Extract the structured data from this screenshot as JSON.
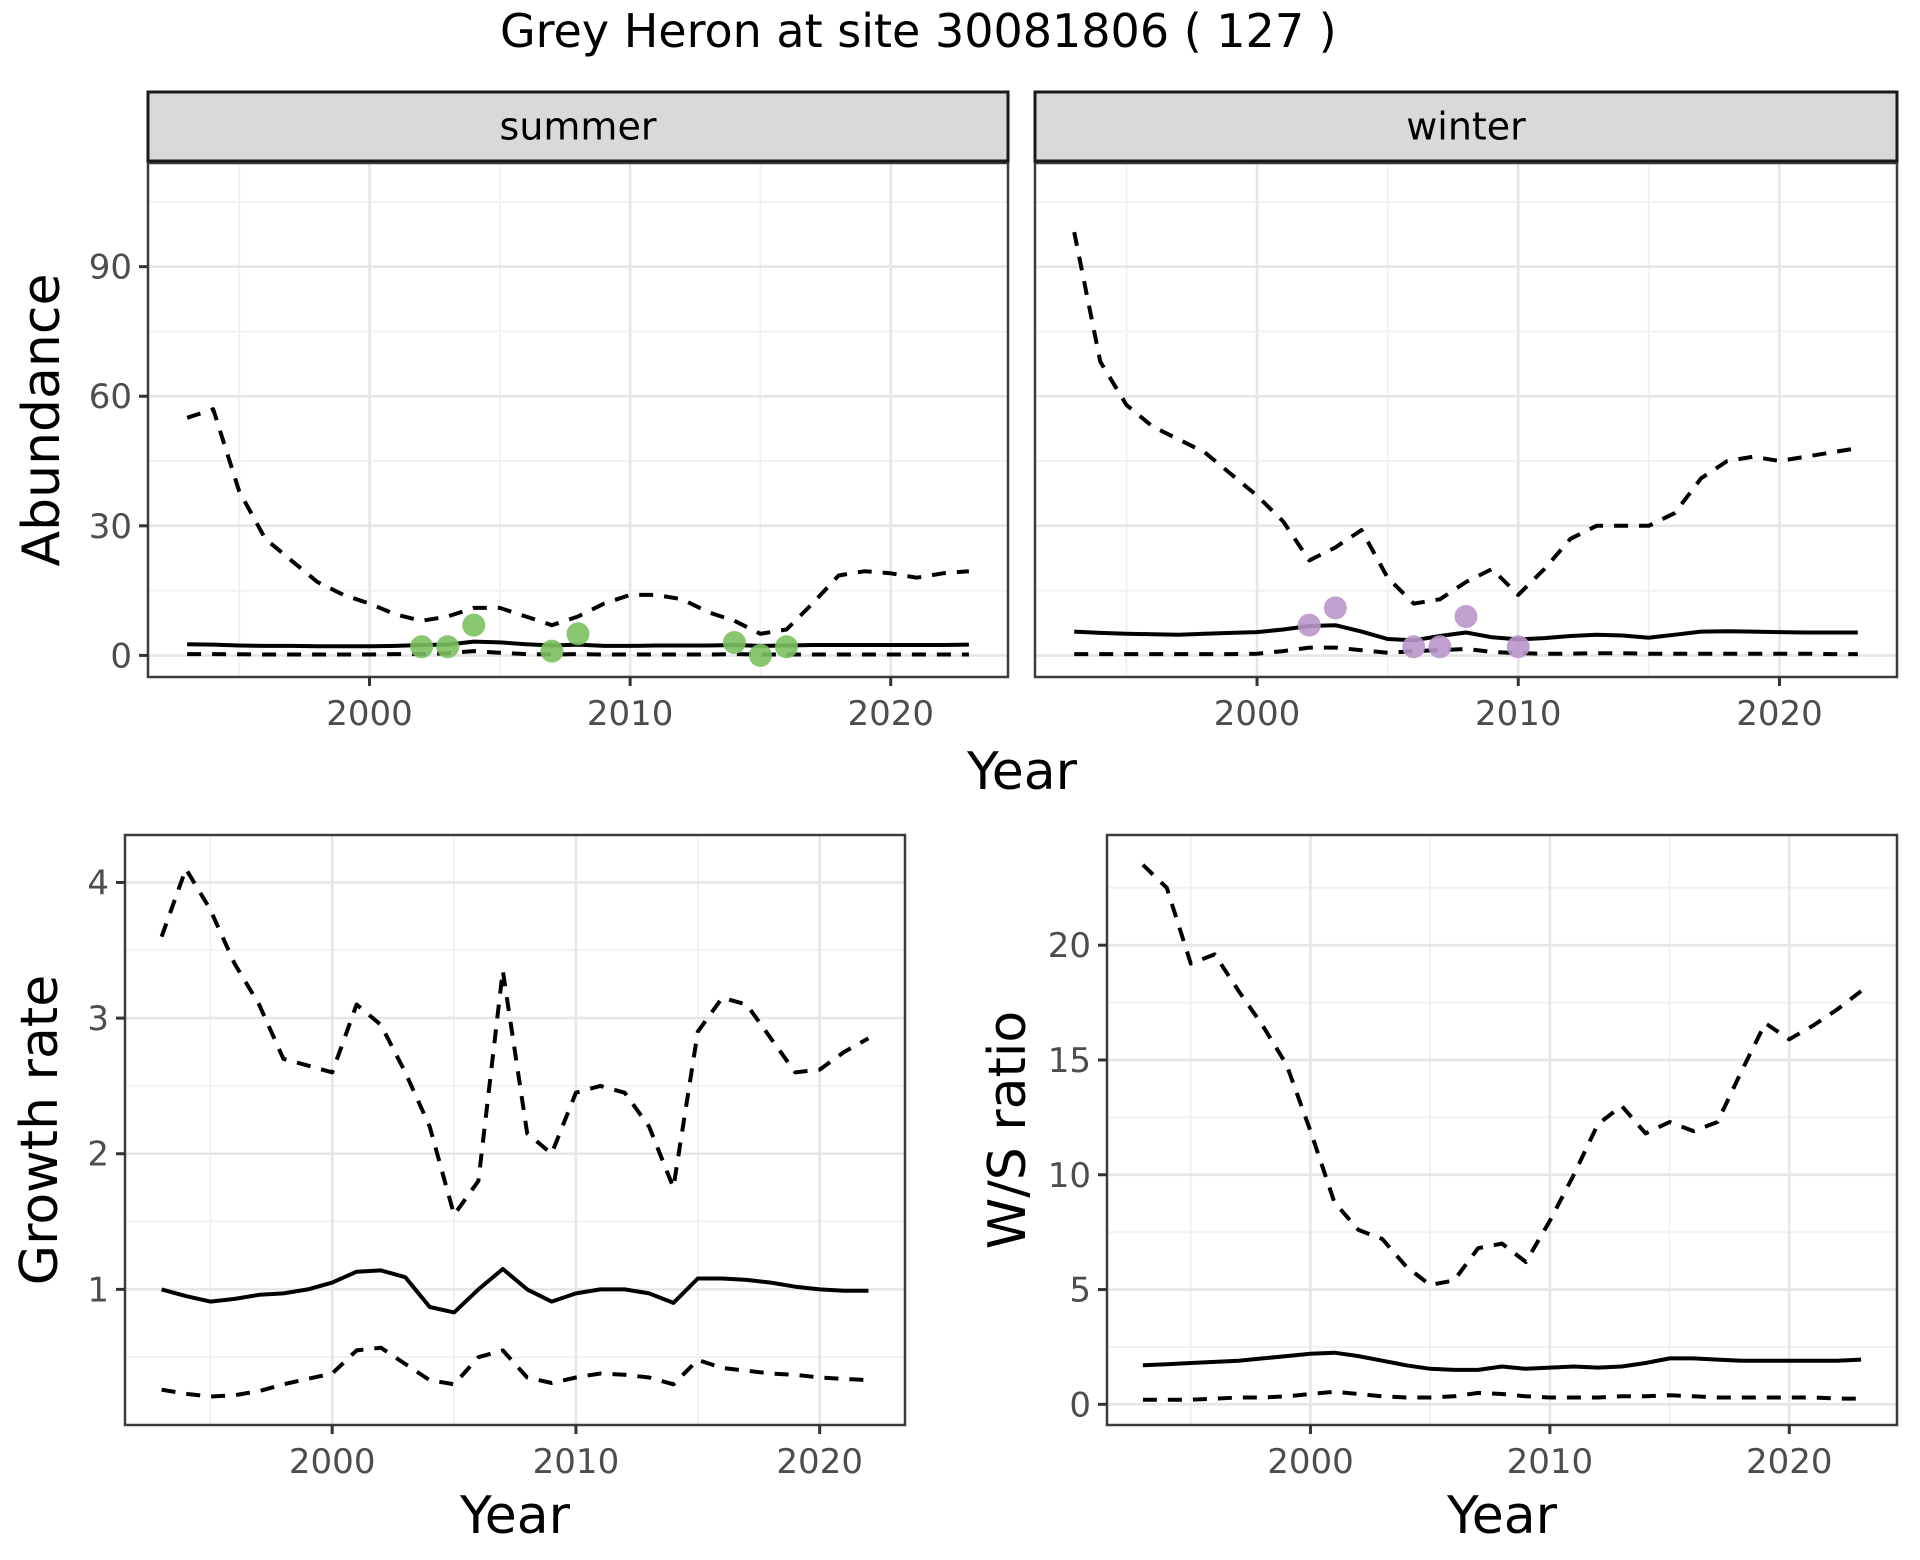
{
  "title": "Grey Heron at site 30081806 ( 127 )",
  "axis_labels": {
    "abundance": "Abundance",
    "year_top": "Year",
    "growth": "Growth rate",
    "year_bottom_left": "Year",
    "ws": "W/S ratio",
    "year_bottom_right": "Year"
  },
  "colors": {
    "summer_points": "#7bc161",
    "winter_points": "#b896c9",
    "line": "#000000",
    "tick_label": "#4d4d4d",
    "strip_bg": "#d9d9d9",
    "strip_border": "#1a1a1a",
    "panel_border": "#3c3c3c",
    "grid_major": "#e6e6e6",
    "grid_minor": "#f2f2f2",
    "background": "#ffffff"
  },
  "chart_data": [
    {
      "id": "abundance-summer",
      "type": "line",
      "strip_label": "summer",
      "xlabel": "Year",
      "ylabel": "Abundance",
      "xlim": [
        1991.5,
        2024.5
      ],
      "ylim": [
        -5,
        114
      ],
      "xticks": [
        2000,
        2010,
        2020
      ],
      "xminor": [
        1995,
        2005,
        2015
      ],
      "yticks": [
        0,
        30,
        60,
        90
      ],
      "yminor": [
        15,
        45,
        75,
        105
      ],
      "years": [
        1993,
        1994,
        1995,
        1996,
        1997,
        1998,
        1999,
        2000,
        2001,
        2002,
        2003,
        2004,
        2005,
        2006,
        2007,
        2008,
        2009,
        2010,
        2011,
        2012,
        2013,
        2014,
        2015,
        2016,
        2017,
        2018,
        2019,
        2020,
        2021,
        2022,
        2023
      ],
      "series": [
        {
          "name": "upper_95ci",
          "style": "dashed",
          "values": [
            55,
            57,
            38,
            27,
            22,
            17,
            14,
            12,
            9.5,
            8,
            9,
            11,
            11,
            9,
            7,
            9,
            12,
            14,
            14,
            13,
            10,
            8,
            5,
            6,
            12,
            18.5,
            19.5,
            19,
            18,
            19,
            19.5
          ]
        },
        {
          "name": "median",
          "style": "solid",
          "values": [
            2.6,
            2.5,
            2.3,
            2.2,
            2.2,
            2.1,
            2.1,
            2.1,
            2.2,
            2.4,
            2.5,
            3.2,
            3.0,
            2.6,
            2.3,
            2.5,
            2.2,
            2.2,
            2.3,
            2.3,
            2.3,
            2.4,
            2.2,
            2.3,
            2.4,
            2.4,
            2.4,
            2.4,
            2.4,
            2.4,
            2.5
          ]
        },
        {
          "name": "lower_95ci",
          "style": "dashed",
          "values": [
            0.3,
            0.3,
            0.25,
            0.2,
            0.2,
            0.2,
            0.2,
            0.2,
            0.3,
            0.3,
            0.5,
            1.0,
            0.6,
            0.3,
            0.2,
            0.3,
            0.2,
            0.2,
            0.2,
            0.2,
            0.2,
            0.3,
            0.2,
            0.2,
            0.2,
            0.2,
            0.2,
            0.2,
            0.2,
            0.2,
            0.2
          ]
        }
      ],
      "points": {
        "name": "observed-counts-summer",
        "color_key": "summer_points",
        "x": [
          2002,
          2003,
          2004,
          2007,
          2008,
          2014,
          2015,
          2016
        ],
        "y": [
          2,
          2,
          7,
          1,
          5,
          3,
          0,
          2
        ]
      }
    },
    {
      "id": "abundance-winter",
      "type": "line",
      "strip_label": "winter",
      "xlabel": "Year",
      "ylabel": "Abundance",
      "xlim": [
        1991.5,
        2024.5
      ],
      "ylim": [
        -5,
        114
      ],
      "xticks": [
        2000,
        2010,
        2020
      ],
      "xminor": [
        1995,
        2005,
        2015
      ],
      "yticks": [
        0,
        30,
        60,
        90
      ],
      "yminor": [
        15,
        45,
        75,
        105
      ],
      "years": [
        1993,
        1994,
        1995,
        1996,
        1997,
        1998,
        1999,
        2000,
        2001,
        2002,
        2003,
        2004,
        2005,
        2006,
        2007,
        2008,
        2009,
        2010,
        2011,
        2012,
        2013,
        2014,
        2015,
        2016,
        2017,
        2018,
        2019,
        2020,
        2021,
        2022,
        2023
      ],
      "series": [
        {
          "name": "upper_95ci",
          "style": "dashed",
          "values": [
            98,
            68,
            58,
            53,
            50,
            47,
            42,
            37,
            31,
            22,
            25,
            29,
            18,
            12,
            13,
            17,
            20,
            14,
            20,
            27,
            30,
            30,
            30,
            33,
            41,
            45,
            46,
            45,
            46,
            47,
            48
          ]
        },
        {
          "name": "median",
          "style": "solid",
          "values": [
            5.5,
            5.2,
            5.0,
            4.9,
            4.8,
            5.0,
            5.2,
            5.4,
            6.0,
            6.8,
            7.0,
            5.5,
            3.8,
            3.5,
            4.5,
            5.3,
            4.2,
            3.7,
            4.0,
            4.5,
            4.8,
            4.6,
            4.1,
            4.8,
            5.5,
            5.6,
            5.5,
            5.4,
            5.3,
            5.3,
            5.3
          ]
        },
        {
          "name": "lower_95ci",
          "style": "dashed",
          "values": [
            0.3,
            0.3,
            0.3,
            0.3,
            0.3,
            0.3,
            0.3,
            0.4,
            1.0,
            1.8,
            1.8,
            1.2,
            0.6,
            1.0,
            1.2,
            1.5,
            0.8,
            0.5,
            0.4,
            0.4,
            0.5,
            0.5,
            0.4,
            0.4,
            0.4,
            0.4,
            0.4,
            0.4,
            0.4,
            0.3,
            0.3
          ]
        }
      ],
      "points": {
        "name": "observed-counts-winter",
        "color_key": "winter_points",
        "x": [
          2002,
          2003,
          2006,
          2007,
          2008,
          2010
        ],
        "y": [
          7,
          11,
          2,
          2,
          9,
          2
        ]
      }
    },
    {
      "id": "growth-rate",
      "type": "line",
      "strip_label": null,
      "xlabel": "Year",
      "ylabel": "Growth rate",
      "xlim": [
        1991.5,
        2023.5
      ],
      "ylim": [
        0,
        4.35
      ],
      "xticks": [
        2000,
        2010,
        2020
      ],
      "xminor": [
        1995,
        2005,
        2015
      ],
      "yticks": [
        1,
        2,
        3,
        4
      ],
      "yminor": [
        0.5,
        1.5,
        2.5,
        3.5
      ],
      "years": [
        1993,
        1994,
        1995,
        1996,
        1997,
        1998,
        1999,
        2000,
        2001,
        2002,
        2003,
        2004,
        2005,
        2006,
        2007,
        2008,
        2009,
        2010,
        2011,
        2012,
        2013,
        2014,
        2015,
        2016,
        2017,
        2018,
        2019,
        2020,
        2021,
        2022
      ],
      "series": [
        {
          "name": "upper_95ci",
          "style": "dashed",
          "values": [
            3.6,
            4.1,
            3.8,
            3.4,
            3.1,
            2.7,
            2.65,
            2.6,
            3.1,
            2.95,
            2.6,
            2.2,
            1.55,
            1.8,
            3.35,
            2.15,
            2.0,
            2.45,
            2.5,
            2.45,
            2.2,
            1.75,
            2.9,
            3.15,
            3.1,
            2.85,
            2.6,
            2.62,
            2.75,
            2.85
          ]
        },
        {
          "name": "median",
          "style": "solid",
          "values": [
            1.0,
            0.95,
            0.91,
            0.93,
            0.96,
            0.97,
            1.0,
            1.05,
            1.13,
            1.14,
            1.09,
            0.87,
            0.83,
            1.0,
            1.15,
            1.0,
            0.91,
            0.97,
            1.0,
            1.0,
            0.97,
            0.9,
            1.08,
            1.08,
            1.07,
            1.05,
            1.02,
            1.0,
            0.99,
            0.99
          ]
        },
        {
          "name": "lower_95ci",
          "style": "dashed",
          "values": [
            0.26,
            0.23,
            0.21,
            0.22,
            0.25,
            0.3,
            0.34,
            0.38,
            0.55,
            0.57,
            0.45,
            0.33,
            0.3,
            0.5,
            0.55,
            0.35,
            0.31,
            0.35,
            0.38,
            0.37,
            0.35,
            0.3,
            0.48,
            0.42,
            0.4,
            0.38,
            0.37,
            0.35,
            0.34,
            0.33
          ]
        }
      ],
      "points": null
    },
    {
      "id": "ws-ratio",
      "type": "line",
      "strip_label": null,
      "xlabel": "Year",
      "ylabel": "W/S ratio",
      "xlim": [
        1991.5,
        2024.5
      ],
      "ylim": [
        -0.9,
        24.8
      ],
      "xticks": [
        2000,
        2010,
        2020
      ],
      "xminor": [
        1995,
        2005,
        2015
      ],
      "yticks": [
        0,
        5,
        10,
        15,
        20
      ],
      "yminor": [
        2.5,
        7.5,
        12.5,
        17.5,
        22.5
      ],
      "years": [
        1993,
        1994,
        1995,
        1996,
        1997,
        1998,
        1999,
        2000,
        2001,
        2002,
        2003,
        2004,
        2005,
        2006,
        2007,
        2008,
        2009,
        2010,
        2011,
        2012,
        2013,
        2014,
        2015,
        2016,
        2017,
        2018,
        2019,
        2020,
        2021,
        2022,
        2023
      ],
      "series": [
        {
          "name": "upper_95ci",
          "style": "dashed",
          "values": [
            23.5,
            22.5,
            19.2,
            19.6,
            18,
            16.5,
            14.8,
            11.9,
            8.8,
            7.6,
            7.2,
            6.0,
            5.2,
            5.4,
            6.8,
            7.0,
            6.2,
            8.0,
            10,
            12.2,
            13,
            11.8,
            12.3,
            11.9,
            12.3,
            14.5,
            16.6,
            15.9,
            16.5,
            17.2,
            18
          ]
        },
        {
          "name": "median",
          "style": "solid",
          "values": [
            1.7,
            1.75,
            1.8,
            1.85,
            1.9,
            2.0,
            2.1,
            2.2,
            2.25,
            2.1,
            1.9,
            1.7,
            1.55,
            1.5,
            1.5,
            1.65,
            1.55,
            1.6,
            1.65,
            1.6,
            1.65,
            1.8,
            2.0,
            2.0,
            1.95,
            1.9,
            1.9,
            1.9,
            1.9,
            1.9,
            1.95
          ]
        },
        {
          "name": "lower_95ci",
          "style": "dashed",
          "values": [
            0.2,
            0.2,
            0.2,
            0.25,
            0.3,
            0.3,
            0.35,
            0.45,
            0.55,
            0.45,
            0.35,
            0.3,
            0.3,
            0.35,
            0.5,
            0.45,
            0.35,
            0.3,
            0.3,
            0.3,
            0.35,
            0.35,
            0.4,
            0.35,
            0.3,
            0.3,
            0.3,
            0.3,
            0.3,
            0.25,
            0.25
          ]
        }
      ],
      "points": null
    }
  ]
}
